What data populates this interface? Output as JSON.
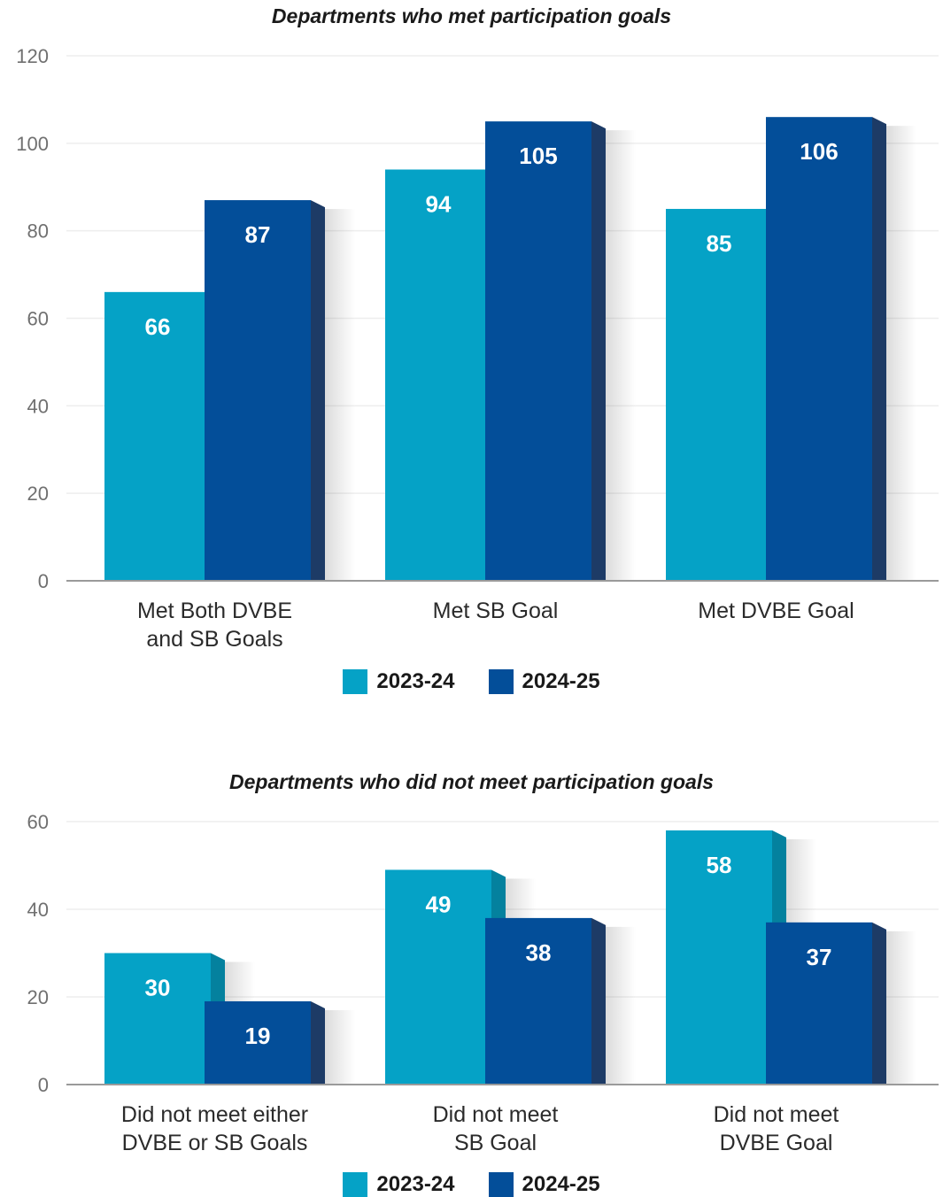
{
  "chart_data": [
    {
      "type": "bar",
      "title": "Departments who met participation goals",
      "categories": [
        [
          "Met Both DVBE",
          "and SB Goals"
        ],
        [
          "Met SB Goal"
        ],
        [
          "Met DVBE Goal"
        ]
      ],
      "series": [
        {
          "name": "2023-24",
          "values": [
            66,
            94,
            85
          ]
        },
        {
          "name": "2024-25",
          "values": [
            87,
            105,
            106
          ]
        }
      ],
      "ylim": [
        0,
        120
      ],
      "yticks": [
        0,
        20,
        40,
        60,
        80,
        100,
        120
      ],
      "grid": true,
      "legend": "bottom"
    },
    {
      "type": "bar",
      "title": "Departments who did not meet participation goals",
      "categories": [
        [
          "Did not meet either",
          "DVBE or SB Goals"
        ],
        [
          "Did not meet",
          "SB Goal"
        ],
        [
          "Did not meet",
          "DVBE Goal"
        ]
      ],
      "series": [
        {
          "name": "2023-24",
          "values": [
            30,
            49,
            58
          ]
        },
        {
          "name": "2024-25",
          "values": [
            19,
            38,
            37
          ]
        }
      ],
      "ylim": [
        0,
        60
      ],
      "yticks": [
        0,
        20,
        40,
        60
      ],
      "grid": true,
      "legend": "bottom"
    }
  ],
  "colors": {
    "series_2023_24": "#05a2c6",
    "series_2023_24_side": "#04819e",
    "series_2024_25": "#034e99",
    "series_2024_25_side": "#1d3b66",
    "grid": "#eeeeee",
    "axis": "#9a9a9a"
  }
}
